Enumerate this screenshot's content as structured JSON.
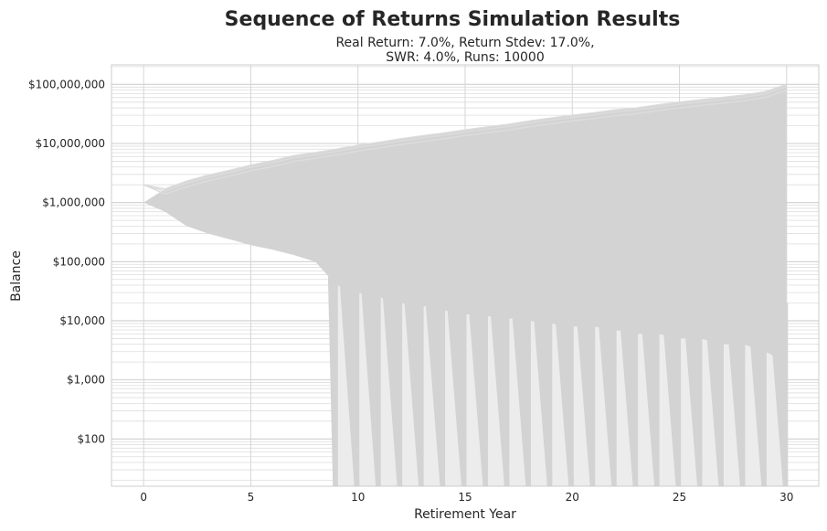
{
  "chart_data": {
    "type": "line",
    "title": "Sequence of Returns Simulation Results",
    "subtitle_lines": [
      "Real Return: 7.0%, Return Stdev: 17.0%,",
      "SWR: 4.0%, Runs: 10000"
    ],
    "xlabel": "Retirement Year",
    "ylabel": "Balance",
    "xlim": [
      -1.5,
      31.5
    ],
    "ylim_log10": [
      1.2,
      8.33
    ],
    "y_scale": "log",
    "grid": true,
    "x_ticks": [
      0,
      5,
      10,
      15,
      20,
      25,
      30
    ],
    "x_tick_labels": [
      "0",
      "5",
      "10",
      "15",
      "20",
      "25",
      "30"
    ],
    "y_ticks": [
      100,
      1000,
      10000,
      100000,
      1000000,
      10000000,
      100000000
    ],
    "y_tick_labels": [
      "$100",
      "$1,000",
      "$10,000",
      "$100,000",
      "$1,000,000",
      "$10,000,000",
      "$100,000,000"
    ],
    "series_color": "#d3d3d3",
    "envelope": {
      "x": [
        0,
        1,
        2,
        3,
        4,
        5,
        6,
        7,
        8,
        9,
        10,
        11,
        12,
        13,
        14,
        15,
        16,
        17,
        18,
        19,
        20,
        21,
        22,
        23,
        24,
        25,
        26,
        27,
        28,
        29,
        30
      ],
      "upper": [
        1000000,
        1700000,
        2300000,
        2900000,
        3500000,
        4300000,
        5100000,
        6200000,
        7000000,
        8000000,
        9300000,
        10500000,
        12000000,
        13500000,
        15000000,
        17000000,
        19000000,
        21000000,
        24000000,
        27000000,
        30000000,
        33000000,
        37000000,
        40000000,
        45000000,
        50000000,
        55000000,
        60000000,
        66000000,
        75000000,
        100000000
      ],
      "lower": [
        1000000,
        700000,
        400000,
        300000,
        240000,
        190000,
        160000,
        130000,
        100000,
        40000,
        30000,
        25000,
        20000,
        18000,
        15000,
        13000,
        12000,
        11000,
        10000,
        9000,
        8000,
        8000,
        7000,
        6000,
        6000,
        5000,
        5000,
        4000,
        4000,
        3000,
        2000
      ]
    },
    "depletion_start_year": 9,
    "depletion_years": [
      9,
      10,
      11,
      12,
      13,
      14,
      15,
      16,
      17,
      18,
      19,
      20,
      21,
      22,
      23,
      24,
      25,
      26,
      27,
      28,
      29,
      30
    ]
  }
}
